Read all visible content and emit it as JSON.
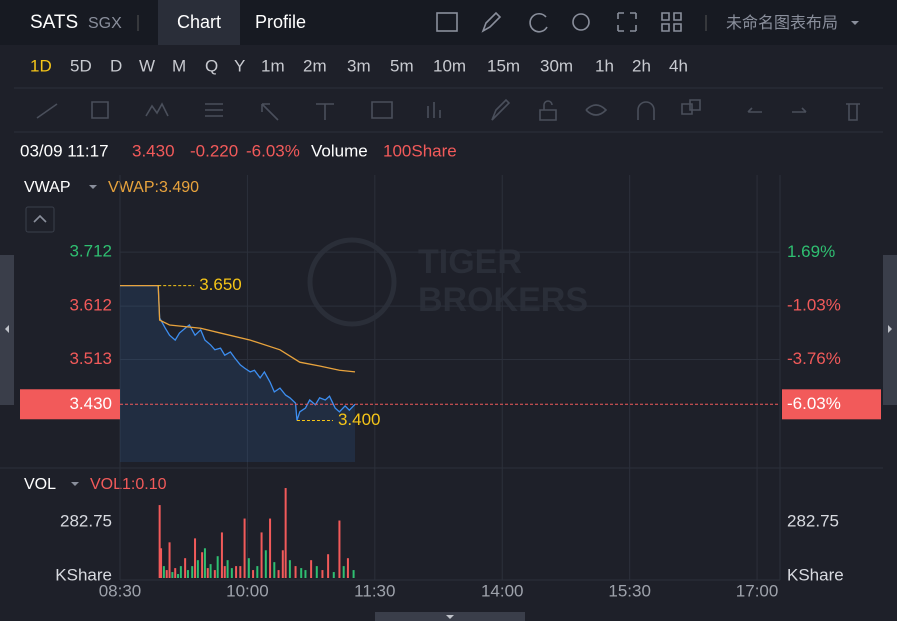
{
  "toolbar": {
    "symbol": "SATS",
    "exchange": "SGX",
    "tabs": [
      "Chart",
      "Profile"
    ],
    "layout_name": "未命名图表布局"
  },
  "timeframes": [
    "1D",
    "5D",
    "D",
    "W",
    "M",
    "Q",
    "Y",
    "1m",
    "2m",
    "3m",
    "5m",
    "10m",
    "15m",
    "30m",
    "1h",
    "2h",
    "4h"
  ],
  "quote": {
    "time": "03/09 11:17",
    "change": "-0.220",
    "volume_label": "Volume",
    "volume_value": "100Share"
  },
  "chart_data": [
    {
      "type": "line",
      "legend": "VWAP",
      "indicator_label": "VWAP:3.490",
      "watermark": [
        "TIGER",
        "BROKERS"
      ],
      "xlim": [
        0,
        466.2
      ],
      "ylim": [
        3.323,
        3.855
      ],
      "yticks": [
        3.712,
        3.612,
        3.513
      ],
      "y2lim": [
        -8.96,
        5.62
      ],
      "y2ticks": [
        {
          "value": 1.69,
          "label": "1.69%"
        },
        {
          "value": -1.03,
          "label": "-1.03%"
        },
        {
          "value": -3.76,
          "label": "-3.76%"
        }
      ],
      "last": {
        "value": 3.43,
        "label": "3.430"
      },
      "last_pct": {
        "value": -6.03,
        "label": "-6.03%"
      },
      "series": [
        {
          "color": "#3d8ef0",
          "x": [
            0,
            27,
            28,
            32,
            35,
            39,
            42,
            46,
            49,
            53,
            57,
            60,
            64,
            67,
            71,
            74,
            78,
            81,
            85,
            88,
            92,
            95,
            99,
            102,
            106,
            109,
            113,
            117,
            120,
            124,
            125,
            127,
            131,
            134,
            138,
            141,
            145,
            148,
            152,
            155,
            159,
            162,
            166
          ],
          "values": [
            3.65,
            3.65,
            3.59,
            3.571,
            3.558,
            3.549,
            3.562,
            3.571,
            3.577,
            3.558,
            3.568,
            3.549,
            3.54,
            3.531,
            3.534,
            3.521,
            3.527,
            3.516,
            3.503,
            3.497,
            3.49,
            3.493,
            3.479,
            3.49,
            3.471,
            3.453,
            3.46,
            3.447,
            3.442,
            3.432,
            3.4,
            3.416,
            3.423,
            3.438,
            3.429,
            3.442,
            3.438,
            3.445,
            3.423,
            3.416,
            3.427,
            3.419,
            3.43
          ]
        },
        {
          "name": "VWAP",
          "color": "#e8a33d",
          "x": [
            0,
            27,
            28,
            35,
            57,
            71,
            92,
            113,
            127,
            141,
            155,
            166
          ],
          "values": [
            3.65,
            3.65,
            3.586,
            3.577,
            3.571,
            3.562,
            3.549,
            3.531,
            3.508,
            3.501,
            3.493,
            3.49
          ]
        }
      ],
      "annotations": [
        {
          "x": 27,
          "value": 3.65,
          "label": "3.650"
        },
        {
          "x": 125,
          "value": 3.4,
          "label": "3.400"
        }
      ]
    },
    {
      "type": "bar",
      "legend": "VOL",
      "indicator_label": "VOL1:0.10",
      "xlim": [
        0,
        466.2
      ],
      "xticks": [
        {
          "value": 0,
          "label": "08:30"
        },
        {
          "value": 90,
          "label": "10:00"
        },
        {
          "value": 180,
          "label": "11:30"
        },
        {
          "value": 270,
          "label": "14:00"
        },
        {
          "value": 360,
          "label": "15:30"
        },
        {
          "value": 450,
          "label": "17:00"
        }
      ],
      "ylim": [
        0,
        545
      ],
      "yticks": [
        {
          "value": 0,
          "label": "KShare"
        },
        282.75
      ],
      "series": [
        {
          "x": [
            28,
            29,
            31,
            33,
            35,
            37,
            39,
            41,
            43,
            46,
            48,
            51,
            53,
            55,
            58,
            60,
            62,
            64,
            67,
            69,
            72,
            74,
            76,
            79,
            82,
            85,
            88,
            91,
            94,
            97,
            100,
            103,
            106,
            109,
            112,
            115,
            117,
            120,
            124,
            128,
            131,
            135,
            139,
            143,
            147,
            151,
            155,
            158,
            161,
            165
          ],
          "values": [
            368,
            150,
            60,
            40,
            180,
            30,
            50,
            20,
            60,
            100,
            40,
            60,
            200,
            90,
            130,
            150,
            50,
            70,
            40,
            110,
            230,
            60,
            90,
            50,
            60,
            60,
            300,
            100,
            40,
            60,
            230,
            140,
            300,
            80,
            40,
            140,
            454,
            90,
            60,
            50,
            40,
            90,
            60,
            40,
            120,
            30,
            290,
            60,
            100,
            40
          ],
          "colors": [
            "#f25a5a",
            "#f25a5a",
            "#2fbf71",
            "#f25a5a",
            "#f25a5a",
            "#2fbf71",
            "#f25a5a",
            "#2fbf71",
            "#2fbf71",
            "#f25a5a",
            "#2fbf71",
            "#2fbf71",
            "#f25a5a",
            "#2fbf71",
            "#f25a5a",
            "#2fbf71",
            "#f25a5a",
            "#2fbf71",
            "#f25a5a",
            "#2fbf71",
            "#f25a5a",
            "#f25a5a",
            "#2fbf71",
            "#2fbf71",
            "#f25a5a",
            "#f25a5a",
            "#f25a5a",
            "#2fbf71",
            "#f25a5a",
            "#2fbf71",
            "#f25a5a",
            "#2fbf71",
            "#f25a5a",
            "#2fbf71",
            "#f25a5a",
            "#f25a5a",
            "#f25a5a",
            "#2fbf71",
            "#f25a5a",
            "#2fbf71",
            "#2fbf71",
            "#f25a5a",
            "#2fbf71",
            "#f25a5a",
            "#f25a5a",
            "#2fbf71",
            "#f25a5a",
            "#2fbf71",
            "#f25a5a",
            "#2fbf71"
          ]
        }
      ]
    }
  ]
}
